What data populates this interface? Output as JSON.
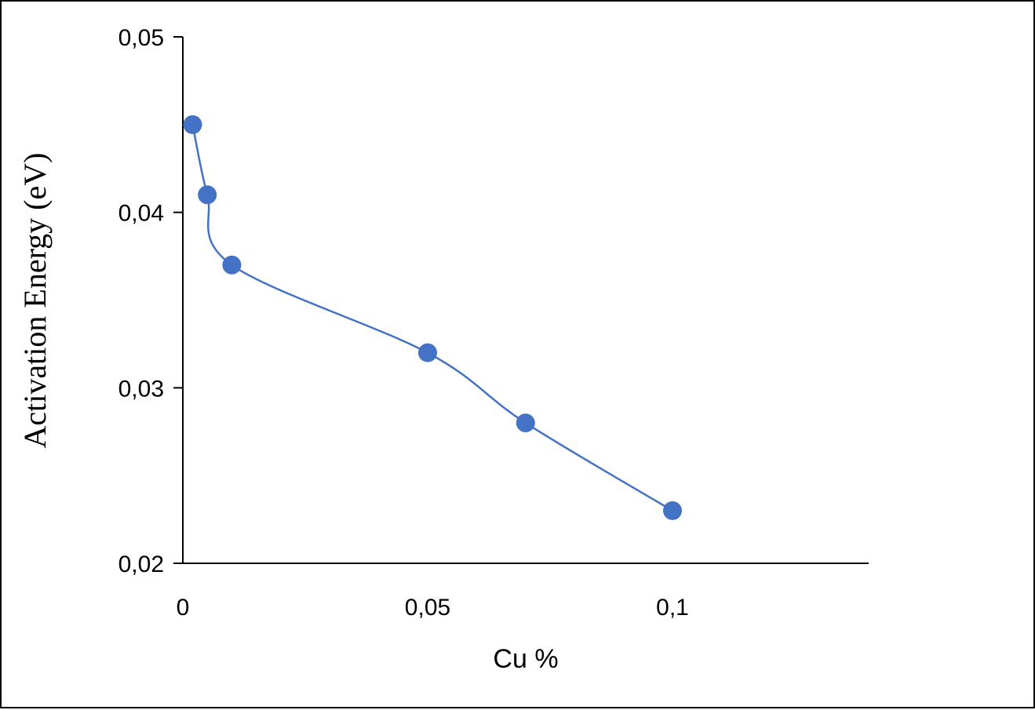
{
  "chart_data": {
    "type": "line",
    "title": "",
    "xlabel": "Cu %",
    "ylabel": "Activation Energy (eV)",
    "xlim": [
      0,
      0.14
    ],
    "ylim": [
      0.02,
      0.05
    ],
    "x_ticks": [
      0,
      0.05,
      0.1
    ],
    "x_tick_labels": [
      "0",
      "0,05",
      "0,1"
    ],
    "y_ticks": [
      0.02,
      0.03,
      0.04,
      0.05
    ],
    "y_tick_labels": [
      "0,02",
      "0,03",
      "0,04",
      "0,05"
    ],
    "grid": false,
    "legend": false,
    "smooth": true,
    "series": [
      {
        "color": "#4472C4",
        "x": [
          0.002,
          0.005,
          0.01,
          0.05,
          0.07,
          0.1
        ],
        "y": [
          0.045,
          0.041,
          0.037,
          0.032,
          0.028,
          0.023
        ]
      }
    ]
  }
}
